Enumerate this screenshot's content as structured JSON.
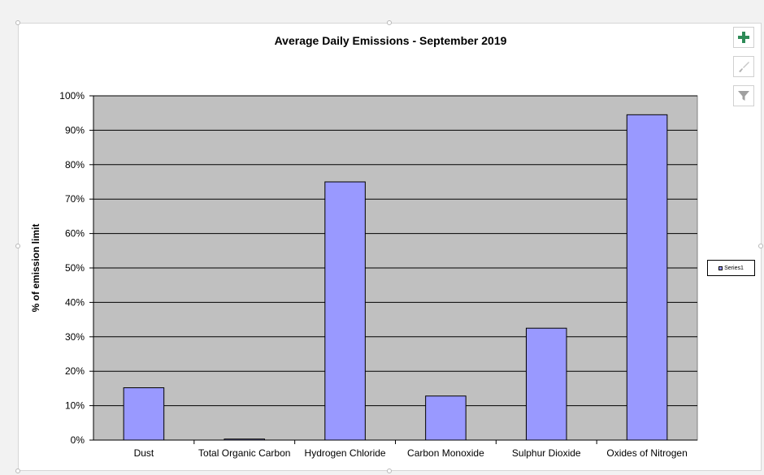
{
  "chart_data": {
    "type": "bar",
    "title": "Average Daily Emissions - September 2019",
    "xlabel": "",
    "ylabel": "% of emission limit",
    "categories": [
      "Dust",
      "Total Organic Carbon",
      "Hydrogen Chloride",
      "Carbon Monoxide",
      "Sulphur Dioxide",
      "Oxides of Nitrogen"
    ],
    "series": [
      {
        "name": "Series1",
        "values": [
          15.2,
          0.3,
          75.0,
          12.8,
          32.5,
          94.5
        ]
      }
    ],
    "ylim": [
      0,
      100
    ],
    "yticks": [
      "0%",
      "10%",
      "20%",
      "30%",
      "40%",
      "50%",
      "60%",
      "70%",
      "80%",
      "90%",
      "100%"
    ],
    "grid": true,
    "legend_position": "right",
    "colors": {
      "bar": "#9999ff",
      "plot_background": "#c0c0c0",
      "gridline": "#000000"
    }
  },
  "toolbar": {
    "icons": [
      "chart-elements-plus-icon",
      "chart-styles-brush-icon",
      "chart-filter-icon"
    ]
  }
}
